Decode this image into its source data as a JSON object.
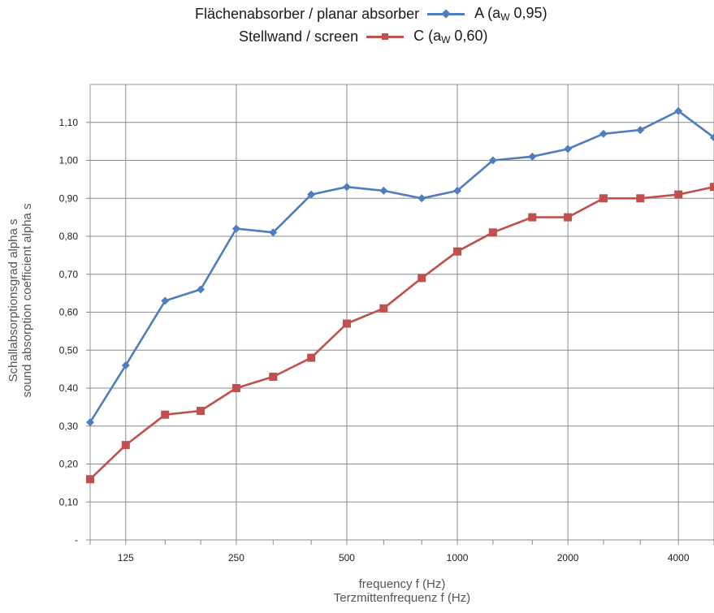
{
  "legend": {
    "row1_label": "Flächenabsorber / planar absorber",
    "row1_series_prefix": "A (a",
    "row1_series_sub": "W",
    "row1_series_suffix": " 0,95)",
    "row2_label": "Stellwand / screen",
    "row2_series_prefix": "C (a",
    "row2_series_sub": "W",
    "row2_series_suffix": " 0,60)"
  },
  "axes": {
    "xlabel_line1": "frequency f (Hz)",
    "xlabel_line2": "Terzmittenfrequenz f (Hz)",
    "ylabel_line1": "Schallabsorptionsgrad alpha s",
    "ylabel_line2": "sound absorption coefficient alpha s"
  },
  "chart_data": {
    "type": "line",
    "x": [
      100,
      125,
      160,
      200,
      250,
      315,
      400,
      500,
      630,
      800,
      1000,
      1250,
      1600,
      2000,
      2500,
      3150,
      4000,
      5000
    ],
    "x_scale": "log",
    "x_ticks": [
      125,
      250,
      500,
      1000,
      2000,
      4000
    ],
    "x_tick_labels": [
      "125",
      "250",
      "500",
      "1000",
      "2000",
      "4000"
    ],
    "ylim": [
      0,
      1.2
    ],
    "y_ticks": [
      0,
      0.1,
      0.2,
      0.3,
      0.4,
      0.5,
      0.6,
      0.7,
      0.8,
      0.9,
      1.0,
      1.1
    ],
    "y_tick_labels": [
      "-",
      "0,10",
      "0,20",
      "0,30",
      "0,40",
      "0,50",
      "0,60",
      "0,70",
      "0,80",
      "0,90",
      "1,00",
      "1,10"
    ],
    "grid": true,
    "series": [
      {
        "name": "A (aW 0,95)",
        "color": "#4f7ebf",
        "marker": "diamond",
        "values": [
          0.31,
          0.46,
          0.63,
          0.66,
          0.82,
          0.81,
          0.91,
          0.93,
          0.92,
          0.9,
          0.92,
          1.0,
          1.01,
          1.03,
          1.07,
          1.08,
          1.13,
          1.06
        ]
      },
      {
        "name": "C (aW 0,60)",
        "color": "#c0504d",
        "marker": "square",
        "values": [
          0.16,
          0.25,
          0.33,
          0.34,
          0.4,
          0.43,
          0.48,
          0.57,
          0.61,
          0.69,
          0.76,
          0.81,
          0.85,
          0.85,
          0.9,
          0.9,
          0.91,
          0.93
        ]
      }
    ]
  }
}
